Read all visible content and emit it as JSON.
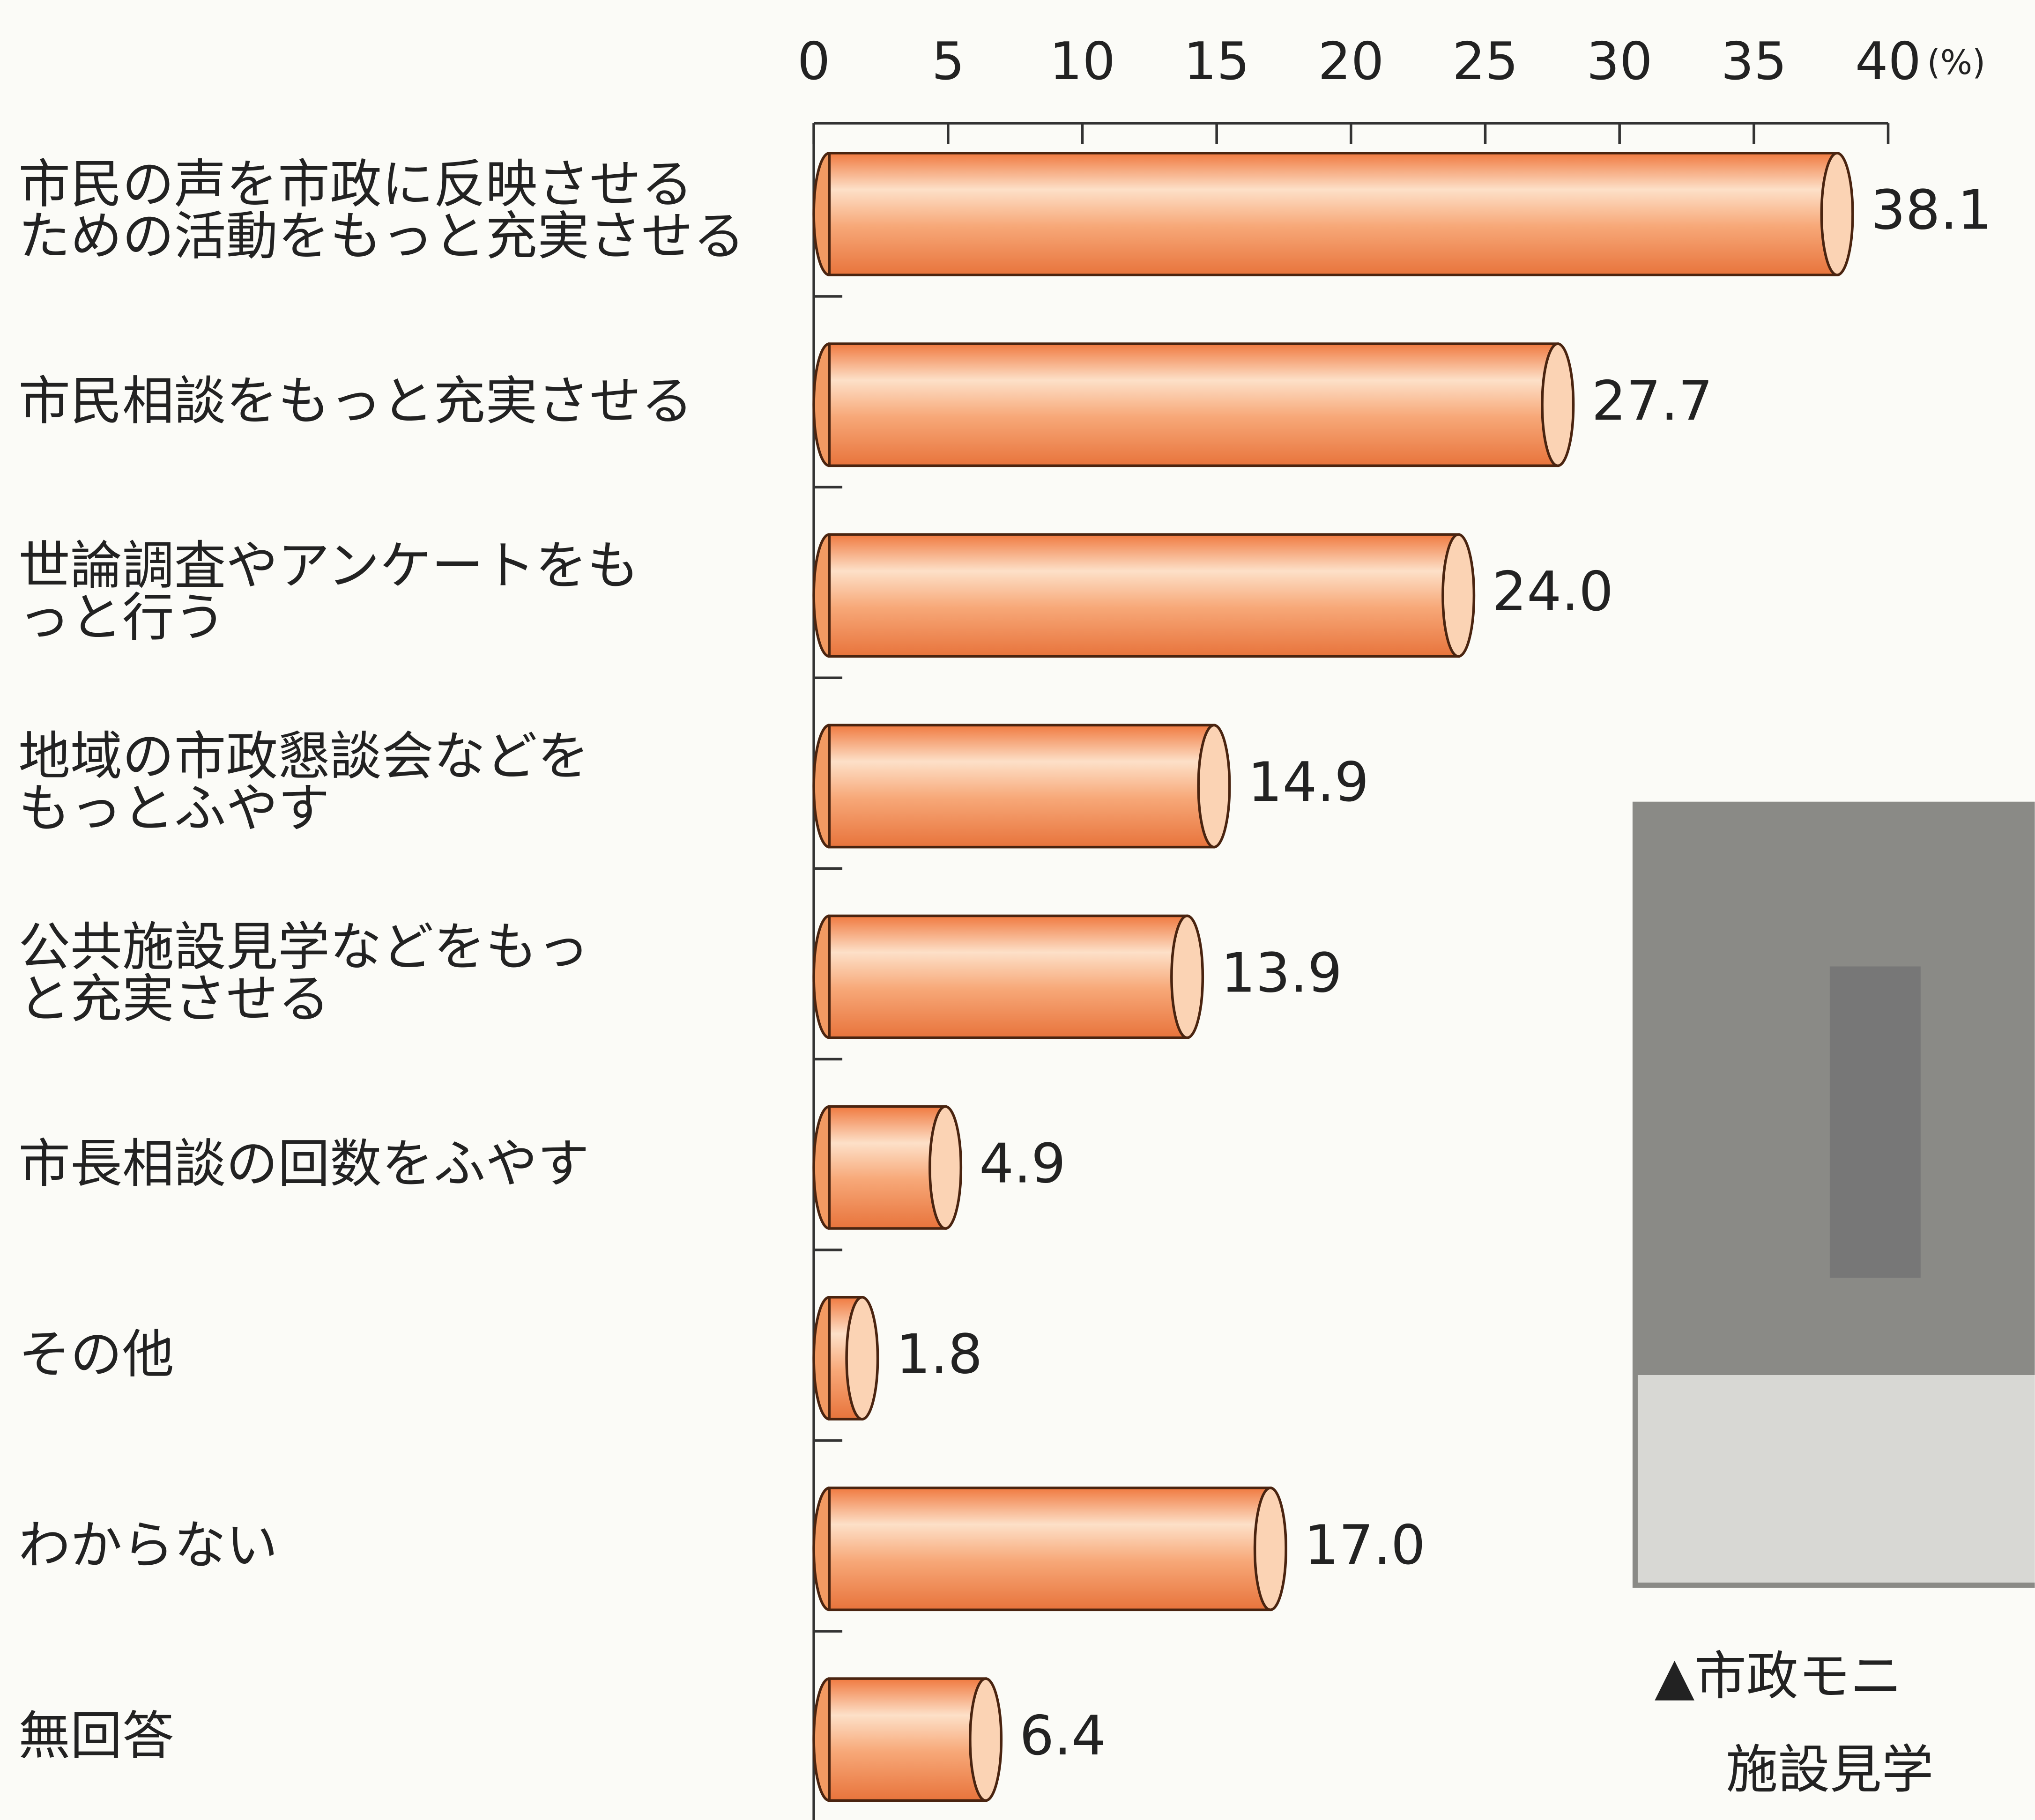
{
  "chart_data": {
    "type": "bar",
    "orientation": "horizontal",
    "xlabel": "(%)",
    "categories": [
      "市民の声を市政に反映させる\nための活動をもっと充実させる",
      "市民相談をもっと充実させる",
      "世論調査やアンケートをも\nっと行う",
      "地域の市政懇談会などを\nもっとふやす",
      "公共施設見学などをもっ\nと充実させる",
      "市長相談の回数をふやす",
      "その他",
      "わからない",
      "無回答"
    ],
    "values": [
      38.1,
      27.7,
      24.0,
      14.9,
      13.9,
      4.9,
      1.8,
      17.0,
      6.4
    ],
    "value_labels": [
      "38.1",
      "27.7",
      "24.0",
      "14.9",
      "13.9",
      "4.9",
      "1.8",
      "17.0",
      "6.4"
    ],
    "color": "#f29a62",
    "xlim": [
      0,
      40
    ],
    "xticks": [
      0,
      5,
      10,
      15,
      20,
      25,
      30,
      35,
      40
    ],
    "annotations": [
      "▲市政モニ",
      "施設見学"
    ]
  }
}
